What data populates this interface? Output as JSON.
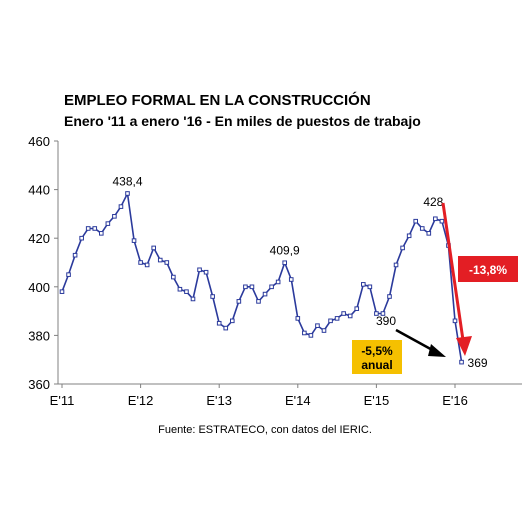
{
  "chart_data": {
    "type": "line",
    "title": "EMPLEO FORMAL EN LA CONSTRUCCIÓN",
    "subtitle": "Enero '11 a enero '16 - En miles de puestos de trabajo",
    "source": "Fuente: ESTRATECO, con datos del IERIC.",
    "ylim": [
      360,
      460
    ],
    "yticks": [
      360,
      380,
      400,
      420,
      440,
      460
    ],
    "xtick_labels": [
      "E'11",
      "E'12",
      "E'13",
      "E'14",
      "E'15",
      "E'16"
    ],
    "xtick_index": [
      0,
      12,
      24,
      36,
      48,
      60
    ],
    "grid": false,
    "series": [
      {
        "color": "#2b3a9c",
        "values": [
          398,
          405,
          413,
          420,
          424,
          424,
          422,
          426,
          429,
          433,
          438.4,
          419,
          410,
          409,
          416,
          411,
          410,
          404,
          399,
          398,
          395,
          407,
          406,
          396,
          385,
          383,
          386,
          394,
          400,
          400,
          394,
          397,
          400,
          402,
          409.9,
          403,
          387,
          381,
          380,
          384,
          382,
          386,
          387,
          389,
          388,
          391,
          401,
          400,
          389,
          389,
          396,
          409,
          416,
          421,
          427,
          424,
          422,
          428,
          427,
          417,
          386,
          369
        ]
      }
    ],
    "data_labels": [
      {
        "index": 10,
        "text": "438,4"
      },
      {
        "index": 34,
        "text": "409,9"
      },
      {
        "index": 57,
        "text": "428"
      },
      {
        "index": 61,
        "text": "369"
      }
    ],
    "annotations": {
      "label_390": "390",
      "red_box": {
        "text": "-13,8%",
        "color": "#e31e24"
      },
      "yellow_box": {
        "line1": "-5,5%",
        "line2": "anual",
        "color": "#f5c000"
      }
    }
  }
}
